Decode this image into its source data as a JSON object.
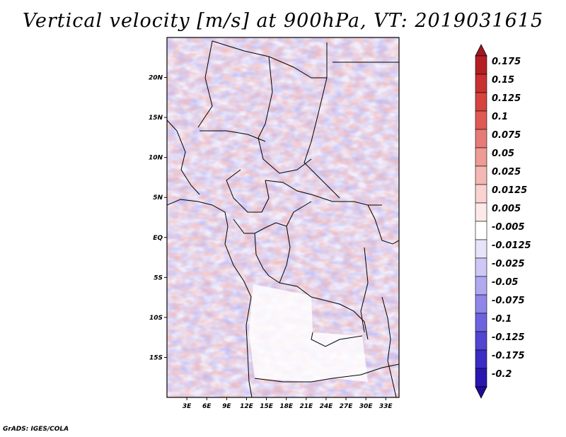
{
  "title": "Vertical velocity [m/s] at 900hPa, VT: 2019031615",
  "credit": "GrADS: IGES/COLA",
  "map": {
    "lat_range": [
      -20,
      25
    ],
    "lon_range": [
      0,
      35
    ],
    "lat_ticks": [
      {
        "value": 20,
        "label": "20N"
      },
      {
        "value": 15,
        "label": "15N"
      },
      {
        "value": 10,
        "label": "10N"
      },
      {
        "value": 5,
        "label": "5N"
      },
      {
        "value": 0,
        "label": "EQ"
      },
      {
        "value": -5,
        "label": "5S"
      },
      {
        "value": -10,
        "label": "10S"
      },
      {
        "value": -15,
        "label": "15S"
      }
    ],
    "lon_ticks": [
      {
        "value": 3,
        "label": "3E"
      },
      {
        "value": 6,
        "label": "6E"
      },
      {
        "value": 9,
        "label": "9E"
      },
      {
        "value": 12,
        "label": "12E"
      },
      {
        "value": 15,
        "label": "15E"
      },
      {
        "value": 18,
        "label": "18E"
      },
      {
        "value": 21,
        "label": "21E"
      },
      {
        "value": 24,
        "label": "24E"
      },
      {
        "value": 27,
        "label": "27E"
      },
      {
        "value": 30,
        "label": "30E"
      },
      {
        "value": 33,
        "label": "33E"
      }
    ]
  },
  "colorbar": {
    "levels": [
      {
        "label": "0.175",
        "color": "#b51f24"
      },
      {
        "label": "0.15",
        "color": "#c8312f"
      },
      {
        "label": "0.125",
        "color": "#d6433f"
      },
      {
        "label": "0.1",
        "color": "#e05a55"
      },
      {
        "label": "0.075",
        "color": "#e77a75"
      },
      {
        "label": "0.05",
        "color": "#ee9a95"
      },
      {
        "label": "0.025",
        "color": "#f4b8b4"
      },
      {
        "label": "0.0125",
        "color": "#f9d3d0"
      },
      {
        "label": "0.005",
        "color": "#fde9e7"
      },
      {
        "label": "-0.005",
        "color": "#ffffff"
      },
      {
        "label": "-0.0125",
        "color": "#e6e3fb"
      },
      {
        "label": "-0.025",
        "color": "#cdc8f6"
      },
      {
        "label": "-0.05",
        "color": "#b0a9f0"
      },
      {
        "label": "-0.075",
        "color": "#8f86e8"
      },
      {
        "label": "-0.1",
        "color": "#6e63de"
      },
      {
        "label": "-0.125",
        "color": "#5245d2"
      },
      {
        "label": "-0.175",
        "color": "#3b2cc4"
      },
      {
        "label": "-0.2",
        "color": "#2a17b0"
      }
    ],
    "top_arrow_color": "#a01820",
    "bottom_arrow_color": "#1f0c9a"
  }
}
